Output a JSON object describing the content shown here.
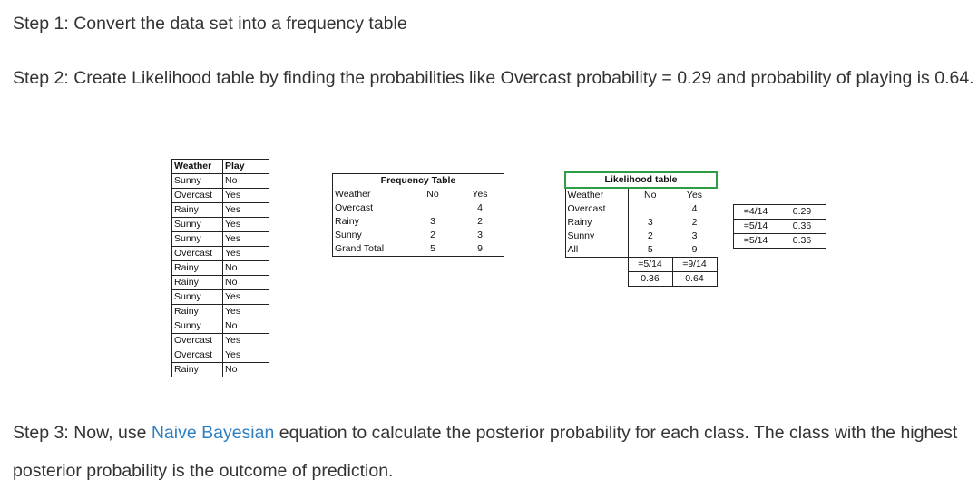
{
  "step1": "Step 1: Convert the data set into a frequency table",
  "step2": "Step 2: Create Likelihood table by finding the probabilities like Overcast probability = 0.29 and probability of playing is 0.64.",
  "step3": {
    "before": "Step 3: Now, use ",
    "link": "Naive Bayesian",
    "after": " equation to calculate the posterior probability for each class. The class with the highest posterior probability is the outcome of prediction."
  },
  "dataset": {
    "headers": [
      "Weather",
      "Play"
    ],
    "rows": [
      [
        "Sunny",
        "No"
      ],
      [
        "Overcast",
        "Yes"
      ],
      [
        "Rainy",
        "Yes"
      ],
      [
        "Sunny",
        "Yes"
      ],
      [
        "Sunny",
        "Yes"
      ],
      [
        "Overcast",
        "Yes"
      ],
      [
        "Rainy",
        "No"
      ],
      [
        "Rainy",
        "No"
      ],
      [
        "Sunny",
        "Yes"
      ],
      [
        "Rainy",
        "Yes"
      ],
      [
        "Sunny",
        "No"
      ],
      [
        "Overcast",
        "Yes"
      ],
      [
        "Overcast",
        "Yes"
      ],
      [
        "Rainy",
        "No"
      ]
    ]
  },
  "frequency": {
    "title": "Frequency Table",
    "headers": [
      "Weather",
      "No",
      "Yes"
    ],
    "rows": [
      [
        "Overcast",
        "",
        "4"
      ],
      [
        "Rainy",
        "3",
        "2"
      ],
      [
        "Sunny",
        "2",
        "3"
      ],
      [
        "Grand Total",
        "5",
        "9"
      ]
    ]
  },
  "likelihood": {
    "title": "Likelihood table",
    "headers": [
      "Weather",
      "No",
      "Yes"
    ],
    "rows": [
      [
        "Overcast",
        "",
        "4"
      ],
      [
        "Rainy",
        "3",
        "2"
      ],
      [
        "Sunny",
        "2",
        "3"
      ],
      [
        "All",
        "5",
        "9"
      ]
    ],
    "fractions": [
      "",
      "=5/14",
      "=9/14"
    ],
    "decimals": [
      "",
      "0.36",
      "0.64"
    ],
    "side": [
      [
        "=4/14",
        "0.29"
      ],
      [
        "=5/14",
        "0.36"
      ],
      [
        "=5/14",
        "0.36"
      ]
    ]
  }
}
